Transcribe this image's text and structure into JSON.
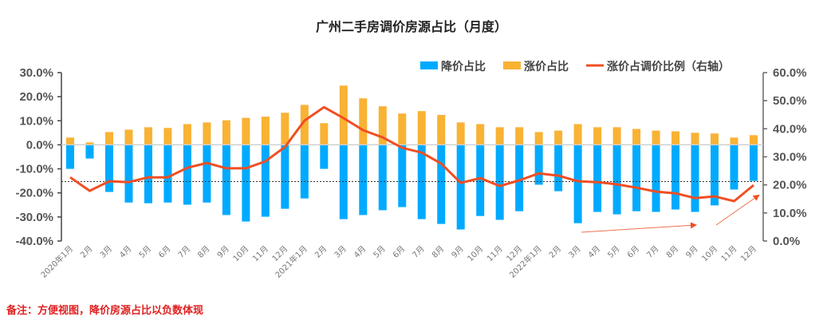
{
  "chart_data": {
    "type": "bar",
    "title": "广州二手房调价房源占比（月度）",
    "categories": [
      "2020年1月",
      "2月",
      "3月",
      "4月",
      "5月",
      "6月",
      "7月",
      "8月",
      "9月",
      "10月",
      "11月",
      "12月",
      "2021年1月",
      "2月",
      "3月",
      "4月",
      "5月",
      "6月",
      "7月",
      "8月",
      "9月",
      "10月",
      "11月",
      "12月",
      "2022年1月",
      "2月",
      "3月",
      "4月",
      "5月",
      "6月",
      "7月",
      "8月",
      "9月",
      "10月",
      "11月",
      "12月"
    ],
    "series": [
      {
        "name": "降价占比",
        "axis": "left",
        "type": "bar",
        "color": "#00aaff",
        "values": [
          -10.0,
          -5.7,
          -19.6,
          -24.0,
          -24.3,
          -24.0,
          -24.9,
          -24.0,
          -29.2,
          -31.9,
          -29.9,
          -26.6,
          -22.3,
          -10.0,
          -30.9,
          -29.2,
          -27.2,
          -25.9,
          -30.9,
          -32.9,
          -35.2,
          -29.6,
          -31.2,
          -27.6,
          -16.6,
          -19.3,
          -32.6,
          -27.9,
          -28.9,
          -27.6,
          -27.9,
          -26.9,
          -27.9,
          -25.2,
          -18.6,
          -15.0
        ]
      },
      {
        "name": "涨价占比",
        "axis": "left",
        "type": "bar",
        "color": "#f9b233",
        "values": [
          3.0,
          1.0,
          5.3,
          6.3,
          7.3,
          7.0,
          8.6,
          9.3,
          10.2,
          11.2,
          11.7,
          13.3,
          16.6,
          9.0,
          24.6,
          19.3,
          16.0,
          13.0,
          14.0,
          12.4,
          9.3,
          8.6,
          7.3,
          7.3,
          5.3,
          5.9,
          8.6,
          7.3,
          7.3,
          6.6,
          5.9,
          5.6,
          5.0,
          4.7,
          3.0,
          4.0
        ]
      },
      {
        "name": "涨价占调价比例（右轴）",
        "axis": "right",
        "type": "line",
        "color": "#f04e23",
        "values": [
          22.7,
          17.9,
          21.3,
          21.0,
          22.7,
          22.7,
          26.1,
          27.8,
          25.9,
          25.9,
          28.4,
          33.5,
          42.9,
          47.7,
          43.8,
          39.5,
          36.9,
          33.2,
          31.5,
          27.6,
          20.7,
          22.4,
          19.6,
          21.6,
          24.1,
          23.3,
          21.3,
          21.0,
          20.2,
          19.0,
          17.6,
          17.0,
          15.3,
          15.9,
          14.2,
          19.9
        ]
      }
    ],
    "left_axis": {
      "ylim": [
        -40,
        30
      ],
      "ticks": [
        "30.0%",
        "20.0%",
        "10.0%",
        "0.0%",
        "-10.0%",
        "-20.0%",
        "-30.0%",
        "-40.0%"
      ]
    },
    "right_axis": {
      "ylim": [
        0,
        60
      ],
      "ticks": [
        "60.0%",
        "50.0%",
        "40.0%",
        "30.0%",
        "20.0%",
        "10.0%",
        "0.0%"
      ]
    },
    "reference_line": {
      "style": "dashed",
      "left_value": -15.3
    },
    "legend_position": "top-right",
    "grid": false
  },
  "footnote": "备注：方便视图，降价房源占比以负数体现"
}
